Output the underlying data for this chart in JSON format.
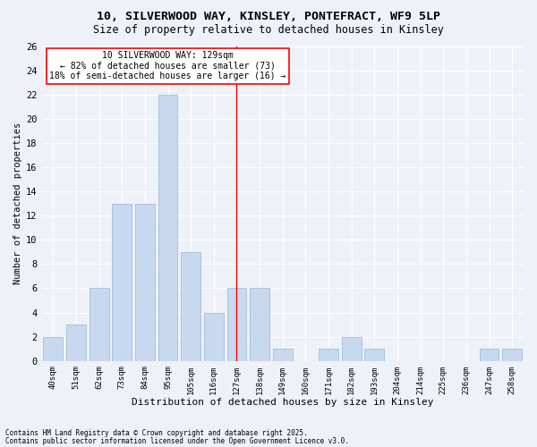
{
  "title1": "10, SILVERWOOD WAY, KINSLEY, PONTEFRACT, WF9 5LP",
  "title2": "Size of property relative to detached houses in Kinsley",
  "xlabel": "Distribution of detached houses by size in Kinsley",
  "ylabel": "Number of detached properties",
  "categories": [
    "40sqm",
    "51sqm",
    "62sqm",
    "73sqm",
    "84sqm",
    "95sqm",
    "105sqm",
    "116sqm",
    "127sqm",
    "138sqm",
    "149sqm",
    "160sqm",
    "171sqm",
    "182sqm",
    "193sqm",
    "204sqm",
    "214sqm",
    "225sqm",
    "236sqm",
    "247sqm",
    "258sqm"
  ],
  "values": [
    2,
    3,
    6,
    13,
    13,
    22,
    9,
    4,
    6,
    6,
    1,
    0,
    1,
    2,
    1,
    0,
    0,
    0,
    0,
    1,
    1
  ],
  "bar_color": "#c8d8ee",
  "bar_edgecolor": "#9ab4d8",
  "red_line_index": 8,
  "ylim": [
    0,
    26
  ],
  "yticks": [
    0,
    2,
    4,
    6,
    8,
    10,
    12,
    14,
    16,
    18,
    20,
    22,
    24,
    26
  ],
  "annotation_title": "10 SILVERWOOD WAY: 129sqm",
  "annotation_line1": "← 82% of detached houses are smaller (73)",
  "annotation_line2": "18% of semi-detached houses are larger (16) →",
  "footer1": "Contains HM Land Registry data © Crown copyright and database right 2025.",
  "footer2": "Contains public sector information licensed under the Open Government Licence v3.0.",
  "bg_color": "#eef2f8",
  "grid_color": "#ffffff"
}
